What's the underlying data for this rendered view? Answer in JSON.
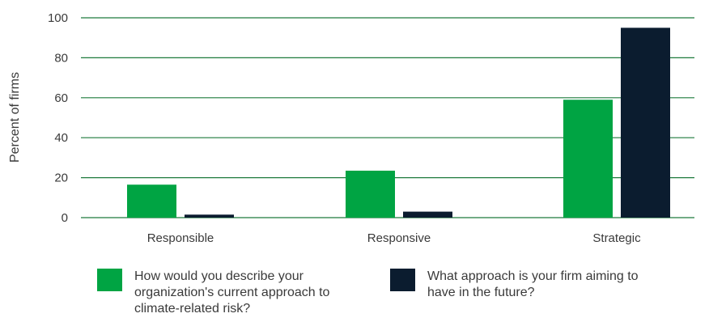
{
  "chart_data": {
    "type": "bar",
    "title": "",
    "xlabel": "",
    "ylabel": "Percent of firms",
    "ylim": [
      0,
      100
    ],
    "yticks": [
      0,
      20,
      40,
      60,
      80,
      100
    ],
    "grid": true,
    "legend_position": "bottom",
    "categories": [
      "Responsible",
      "Responsive",
      "Strategic"
    ],
    "series": [
      {
        "name": "How would you describe your organization's current approach to climate-related risk?",
        "color": "#00a443",
        "values": [
          16.5,
          23.5,
          59
        ]
      },
      {
        "name": "What approach is your firm aiming to have in the future?",
        "color": "#0b1c2f",
        "values": [
          1.5,
          3,
          95
        ]
      }
    ],
    "gridline_color": "#1e7a3c"
  }
}
